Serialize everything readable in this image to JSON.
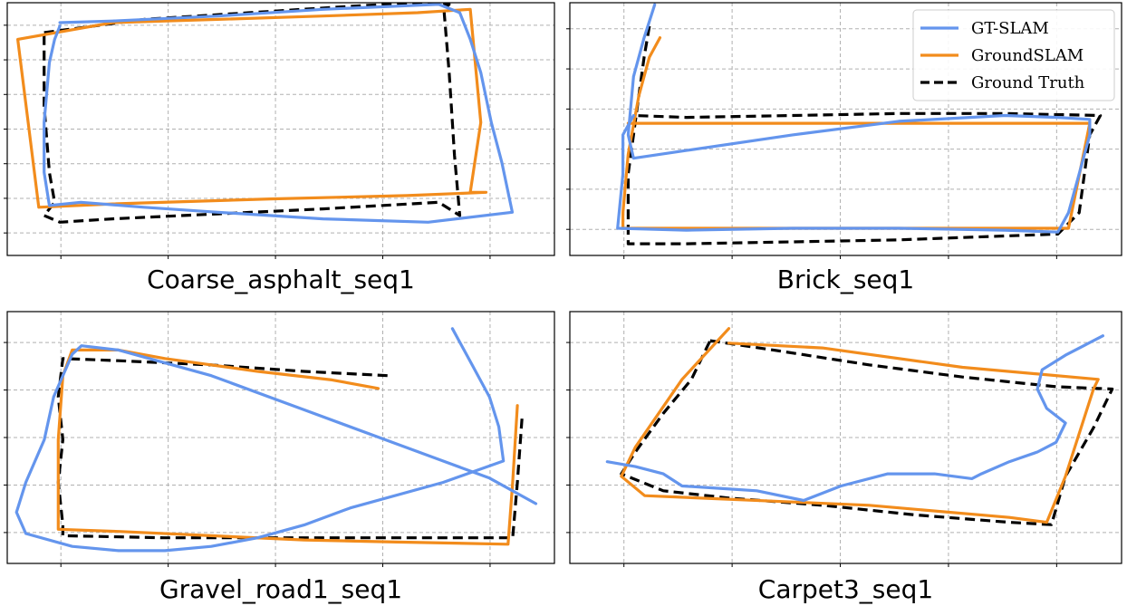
{
  "chart_data": [
    {
      "type": "line",
      "title": "Coarse_asphalt_seq1",
      "xlabel": "",
      "ylabel": "",
      "xlim": [
        -0.5,
        4.7
      ],
      "ylim": [
        -1.0,
        6.6
      ],
      "grid": true,
      "legend": false,
      "series": [
        {
          "name": "GT-SLAM",
          "color": "#6495ED",
          "style": "solid",
          "points": [
            [
              0.0,
              6.0
            ],
            [
              0.5,
              6.05
            ],
            [
              1.5,
              6.2
            ],
            [
              2.5,
              6.4
            ],
            [
              3.6,
              6.55
            ],
            [
              3.8,
              6.3
            ],
            [
              3.9,
              5.5
            ],
            [
              4.0,
              4.5
            ],
            [
              4.1,
              3.0
            ],
            [
              4.2,
              1.8
            ],
            [
              4.3,
              0.3
            ],
            [
              3.5,
              0.0
            ],
            [
              2.5,
              0.1
            ],
            [
              1.5,
              0.3
            ],
            [
              0.8,
              0.45
            ],
            [
              0.2,
              0.6
            ],
            [
              -0.1,
              0.5
            ],
            [
              -0.15,
              1.5
            ],
            [
              -0.15,
              3.0
            ],
            [
              -0.1,
              4.8
            ],
            [
              -0.05,
              5.5
            ],
            [
              0.0,
              5.9
            ]
          ]
        },
        {
          "name": "GroundSLAM",
          "color": "#F28C1C",
          "style": "solid",
          "points": [
            [
              0.5,
              6.0
            ],
            [
              1.5,
              6.1
            ],
            [
              2.5,
              6.2
            ],
            [
              3.4,
              6.3
            ],
            [
              3.9,
              6.4
            ],
            [
              4.0,
              3.0
            ],
            [
              3.9,
              0.9
            ],
            [
              4.05,
              0.9
            ],
            [
              3.3,
              0.8
            ],
            [
              2.0,
              0.7
            ],
            [
              0.5,
              0.55
            ],
            [
              -0.2,
              0.45
            ],
            [
              -0.4,
              5.5
            ],
            [
              0.5,
              6.0
            ]
          ]
        },
        {
          "name": "Ground Truth",
          "color": "#000000",
          "style": "dashed",
          "points": [
            [
              -0.15,
              5.7
            ],
            [
              0.8,
              6.1
            ],
            [
              1.8,
              6.3
            ],
            [
              2.8,
              6.5
            ],
            [
              3.4,
              6.6
            ],
            [
              3.7,
              6.55
            ],
            [
              3.65,
              6.4
            ],
            [
              3.7,
              4.5
            ],
            [
              3.75,
              2.0
            ],
            [
              3.8,
              0.2
            ],
            [
              3.6,
              0.6
            ],
            [
              2.5,
              0.4
            ],
            [
              1.5,
              0.25
            ],
            [
              0.5,
              0.1
            ],
            [
              0.0,
              0.0
            ],
            [
              -0.15,
              0.2
            ],
            [
              -0.05,
              0.6
            ],
            [
              -0.1,
              1.5
            ],
            [
              -0.15,
              3.5
            ],
            [
              -0.15,
              5.7
            ]
          ]
        }
      ]
    },
    {
      "type": "line",
      "title": "Brick_seq1",
      "xlabel": "",
      "ylabel": "",
      "xlim": [
        -0.6,
        4.6
      ],
      "ylim": [
        -0.6,
        5.9
      ],
      "grid": true,
      "legend": true,
      "legend_position": "top-right",
      "series": [
        {
          "name": "GT-SLAM",
          "color": "#6495ED",
          "style": "solid",
          "points": [
            [
              0.2,
              5.85
            ],
            [
              0.1,
              5.0
            ],
            [
              0.0,
              4.0
            ],
            [
              -0.05,
              2.5
            ],
            [
              0.0,
              1.9
            ],
            [
              0.5,
              2.1
            ],
            [
              1.5,
              2.5
            ],
            [
              2.5,
              2.85
            ],
            [
              3.5,
              3.0
            ],
            [
              4.0,
              2.95
            ],
            [
              4.3,
              2.9
            ],
            [
              4.3,
              2.5
            ],
            [
              4.2,
              1.5
            ],
            [
              4.1,
              0.5
            ],
            [
              4.0,
              0.0
            ],
            [
              3.5,
              0.05
            ],
            [
              2.5,
              0.1
            ],
            [
              1.5,
              0.1
            ],
            [
              0.5,
              0.05
            ],
            [
              -0.15,
              0.1
            ],
            [
              -0.1,
              1.5
            ],
            [
              -0.1,
              2.5
            ],
            [
              0.0,
              3.0
            ]
          ]
        },
        {
          "name": "GroundSLAM",
          "color": "#F28C1C",
          "style": "solid",
          "points": [
            [
              0.25,
              5.0
            ],
            [
              0.15,
              4.5
            ],
            [
              0.05,
              3.5
            ],
            [
              -0.05,
              2.0
            ],
            [
              -0.1,
              0.5
            ],
            [
              -0.1,
              0.1
            ],
            [
              1.5,
              0.1
            ],
            [
              3.0,
              0.1
            ],
            [
              4.1,
              0.1
            ],
            [
              4.3,
              2.8
            ],
            [
              3.5,
              2.8
            ],
            [
              2.0,
              2.8
            ],
            [
              0.5,
              2.8
            ],
            [
              -0.05,
              2.8
            ]
          ]
        },
        {
          "name": "Ground Truth",
          "color": "#000000",
          "style": "dashed",
          "points": [
            [
              0.15,
              5.3
            ],
            [
              0.1,
              4.5
            ],
            [
              0.05,
              3.5
            ],
            [
              0.0,
              2.5
            ],
            [
              -0.05,
              1.5
            ],
            [
              -0.05,
              0.5
            ],
            [
              -0.05,
              -0.3
            ],
            [
              0.5,
              -0.3
            ],
            [
              1.5,
              -0.25
            ],
            [
              2.5,
              -0.2
            ],
            [
              3.5,
              -0.1
            ],
            [
              4.0,
              -0.05
            ],
            [
              4.2,
              0.5
            ],
            [
              4.25,
              1.5
            ],
            [
              4.3,
              2.5
            ],
            [
              4.4,
              3.0
            ],
            [
              3.5,
              3.05
            ],
            [
              2.5,
              3.05
            ],
            [
              1.5,
              3.0
            ],
            [
              0.5,
              2.95
            ],
            [
              0.0,
              3.0
            ]
          ]
        }
      ]
    },
    {
      "type": "line",
      "title": "Gravel_road1_seq1",
      "xlabel": "",
      "ylabel": "",
      "xlim": [
        -0.7,
        5.2
      ],
      "ylim": [
        -0.9,
        5.0
      ],
      "grid": true,
      "legend": false,
      "series": [
        {
          "name": "GT-SLAM",
          "color": "#6495ED",
          "style": "solid",
          "points": [
            [
              4.1,
              4.6
            ],
            [
              4.3,
              3.8
            ],
            [
              4.5,
              3.0
            ],
            [
              4.6,
              2.3
            ],
            [
              4.65,
              1.5
            ],
            [
              4.0,
              1.0
            ],
            [
              3.0,
              0.4
            ],
            [
              2.5,
              0.0
            ],
            [
              2.0,
              -0.3
            ],
            [
              1.5,
              -0.5
            ],
            [
              1.0,
              -0.6
            ],
            [
              0.5,
              -0.6
            ],
            [
              0.0,
              -0.5
            ],
            [
              -0.5,
              -0.2
            ],
            [
              -0.6,
              0.3
            ],
            [
              -0.5,
              1.0
            ],
            [
              -0.3,
              2.0
            ],
            [
              -0.2,
              3.0
            ],
            [
              0.0,
              4.0
            ],
            [
              0.1,
              4.2
            ],
            [
              0.5,
              4.1
            ],
            [
              1.5,
              3.5
            ],
            [
              2.5,
              2.7
            ],
            [
              3.5,
              1.9
            ],
            [
              4.5,
              1.1
            ],
            [
              5.0,
              0.5
            ]
          ]
        },
        {
          "name": "GroundSLAM",
          "color": "#F28C1C",
          "style": "solid",
          "points": [
            [
              3.3,
              3.2
            ],
            [
              2.8,
              3.4
            ],
            [
              2.0,
              3.6
            ],
            [
              1.0,
              3.9
            ],
            [
              0.5,
              4.1
            ],
            [
              0.0,
              4.1
            ],
            [
              -0.1,
              3.5
            ],
            [
              -0.15,
              2.0
            ],
            [
              -0.15,
              0.5
            ],
            [
              -0.15,
              -0.1
            ],
            [
              0.5,
              -0.15
            ],
            [
              1.5,
              -0.25
            ],
            [
              2.5,
              -0.35
            ],
            [
              3.5,
              -0.4
            ],
            [
              4.7,
              -0.45
            ],
            [
              4.75,
              1.0
            ],
            [
              4.8,
              2.8
            ]
          ]
        },
        {
          "name": "Ground Truth",
          "color": "#000000",
          "style": "dashed",
          "points": [
            [
              3.4,
              3.5
            ],
            [
              2.5,
              3.6
            ],
            [
              1.5,
              3.75
            ],
            [
              0.5,
              3.85
            ],
            [
              -0.1,
              3.9
            ],
            [
              -0.15,
              3.0
            ],
            [
              -0.1,
              2.0
            ],
            [
              -0.15,
              1.0
            ],
            [
              -0.1,
              0.0
            ],
            [
              -0.1,
              -0.25
            ],
            [
              1.0,
              -0.3
            ],
            [
              2.0,
              -0.3
            ],
            [
              3.0,
              -0.3
            ],
            [
              4.0,
              -0.3
            ],
            [
              4.75,
              -0.3
            ],
            [
              4.8,
              1.0
            ],
            [
              4.85,
              2.5
            ]
          ]
        }
      ]
    },
    {
      "type": "line",
      "title": "Carpet3_seq1",
      "xlabel": "",
      "ylabel": "",
      "xlim": [
        -0.7,
        5.2
      ],
      "ylim": [
        -0.8,
        4.4
      ],
      "grid": true,
      "legend": false,
      "series": [
        {
          "name": "GT-SLAM",
          "color": "#6495ED",
          "style": "solid",
          "points": [
            [
              -0.3,
              1.3
            ],
            [
              0.0,
              1.2
            ],
            [
              0.3,
              1.05
            ],
            [
              0.5,
              0.8
            ],
            [
              0.9,
              0.75
            ],
            [
              1.3,
              0.7
            ],
            [
              1.8,
              0.5
            ],
            [
              2.2,
              0.8
            ],
            [
              2.7,
              1.05
            ],
            [
              3.2,
              1.05
            ],
            [
              3.6,
              0.95
            ],
            [
              3.7,
              1.05
            ],
            [
              4.0,
              1.3
            ],
            [
              4.3,
              1.5
            ],
            [
              4.5,
              1.7
            ],
            [
              4.6,
              2.1
            ],
            [
              4.4,
              2.4
            ],
            [
              4.3,
              2.8
            ],
            [
              4.35,
              3.2
            ],
            [
              4.6,
              3.5
            ],
            [
              4.8,
              3.7
            ],
            [
              5.0,
              3.9
            ]
          ]
        },
        {
          "name": "GroundSLAM",
          "color": "#F28C1C",
          "style": "solid",
          "points": [
            [
              1.0,
              4.05
            ],
            [
              0.5,
              3.0
            ],
            [
              0.0,
              1.6
            ],
            [
              -0.15,
              1.0
            ],
            [
              0.1,
              0.6
            ],
            [
              2.5,
              0.4
            ],
            [
              4.0,
              0.15
            ],
            [
              4.4,
              0.05
            ],
            [
              4.6,
              1.0
            ],
            [
              4.9,
              2.8
            ],
            [
              4.95,
              3.0
            ],
            [
              3.5,
              3.25
            ],
            [
              2.0,
              3.65
            ],
            [
              1.0,
              3.75
            ]
          ]
        },
        {
          "name": "Ground Truth",
          "color": "#000000",
          "style": "dashed",
          "points": [
            [
              0.8,
              3.8
            ],
            [
              1.5,
              3.6
            ],
            [
              2.5,
              3.3
            ],
            [
              3.5,
              3.05
            ],
            [
              4.5,
              2.85
            ],
            [
              5.1,
              2.8
            ],
            [
              4.9,
              2.0
            ],
            [
              4.6,
              1.0
            ],
            [
              4.45,
              0.0
            ],
            [
              4.0,
              0.05
            ],
            [
              3.0,
              0.2
            ],
            [
              2.0,
              0.4
            ],
            [
              1.0,
              0.55
            ],
            [
              0.3,
              0.7
            ],
            [
              -0.15,
              1.05
            ],
            [
              0.0,
              1.5
            ],
            [
              0.3,
              2.3
            ],
            [
              0.6,
              3.0
            ],
            [
              0.8,
              3.8
            ]
          ]
        }
      ]
    }
  ]
}
